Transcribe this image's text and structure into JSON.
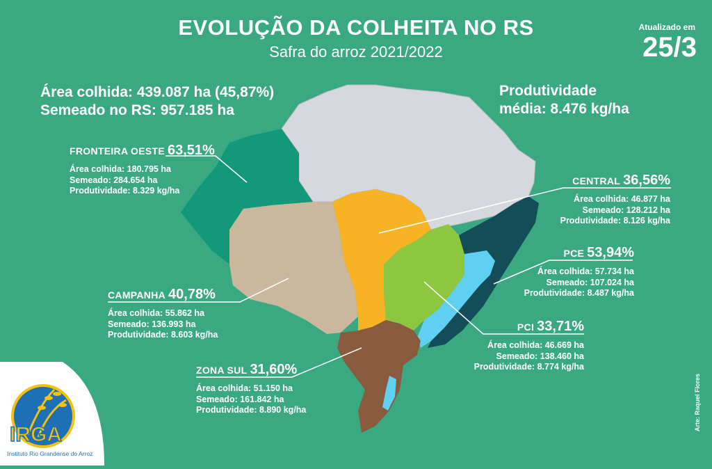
{
  "header": {
    "title": "EVOLUÇÃO DA COLHEITA NO RS",
    "subtitle": "Safra do arroz 2021/2022",
    "updated_label": "Atualizado em",
    "updated_date": "25/3"
  },
  "totals": {
    "area_line": "Área colhida: 439.087 ha (45,87%)",
    "sown_line": "Semeado no RS: 957.185 ha",
    "productivity_line1": "Produtividade",
    "productivity_line2": "média: 8.476 kg/ha"
  },
  "regions": {
    "fronteira_oeste": {
      "name": "FRONTEIRA OESTE",
      "pct": "63,51%",
      "area": "Área colhida: 180.795 ha",
      "sown": "Semeado: 284.654 ha",
      "prod": "Produtividade: 8.329 kg/ha",
      "color": "#14987a"
    },
    "central": {
      "name": "CENTRAL",
      "pct": "36,56%",
      "area": "Área colhida: 46.877 ha",
      "sown": "Semeado: 128.212 ha",
      "prod": "Produtividade: 8.126 kg/ha",
      "color": "#f8b325"
    },
    "pce": {
      "name": "PCE",
      "pct": "53,94%",
      "area": "Área colhida: 57.734 ha",
      "sown": "Semeado: 107.024 ha",
      "prod": "Produtividade: 8.487 kg/ha",
      "color": "#8dc63f"
    },
    "campanha": {
      "name": "CAMPANHA",
      "pct": "40,78%",
      "area": "Área colhida: 55.862 ha",
      "sown": "Semeado: 136.993 ha",
      "prod": "Produtividade: 8.603 kg/ha",
      "color": "#c9b89e"
    },
    "pci": {
      "name": "PCI",
      "pct": "33,71%",
      "area": "Área colhida: 46.669 ha",
      "sown": "Semeado: 138.460 ha",
      "prod": "Produtividade: 8.774 kg/ha",
      "color": "#5fd0f0"
    },
    "zona_sul": {
      "name": "ZONA SUL",
      "pct": "31,60%",
      "area": "Área colhida: 51.150 ha",
      "sown": "Semeado: 161.842 ha",
      "prod": "Produtividade: 8.890 kg/ha",
      "color": "#8a5a3e"
    },
    "litoral": {
      "color": "#124d58"
    },
    "norte": {
      "color": "#d5d8dc"
    }
  },
  "logo": {
    "name": "IRGA",
    "subtitle": "Instituto Rio Grandense do Arroz"
  },
  "credit": "Arte: Raquel Flores"
}
